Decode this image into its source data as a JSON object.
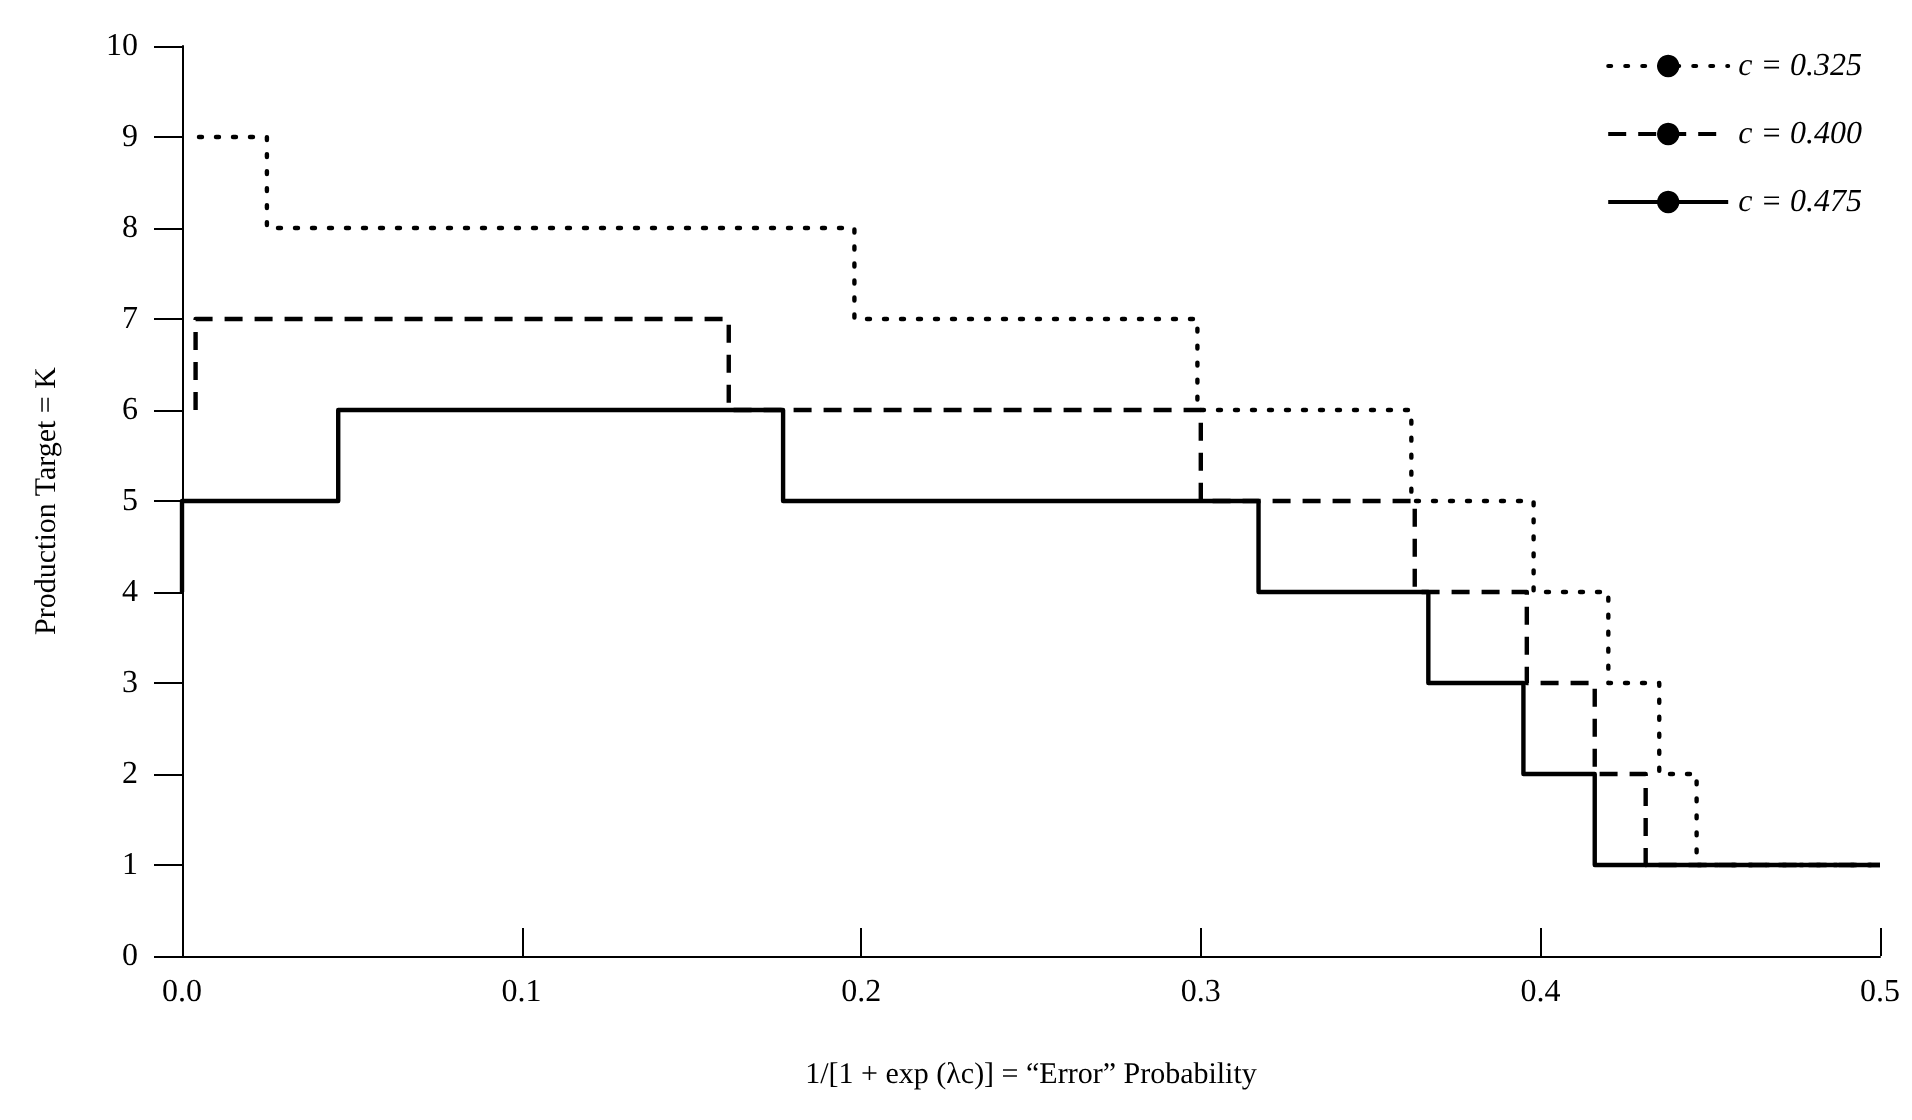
{
  "chart_data": {
    "type": "step",
    "xlabel": "1/[1 + exp (λc)] = “Error” Probability",
    "ylabel": "Production Target = K",
    "xlim": [
      0,
      0.5
    ],
    "xticks": [
      {
        "value": 0,
        "label": "0.0"
      },
      0.1,
      0.2,
      0.3,
      0.4,
      0.5
    ],
    "ylim": [
      0,
      10
    ],
    "yticks": [
      0,
      1,
      2,
      3,
      4,
      5,
      6,
      7,
      8,
      9,
      10
    ],
    "grid": false,
    "legend": "top right",
    "marker": "none",
    "series": [
      {
        "name": "c = 0.325",
        "color": "#000000",
        "line_style": "dotted",
        "x": [
          0.005,
          0.025,
          0.198,
          0.299,
          0.362,
          0.398,
          0.42,
          0.435,
          0.446,
          0.5
        ],
        "values": [
          9,
          8,
          7,
          6,
          5,
          4,
          3,
          2,
          1,
          1
        ]
      },
      {
        "name": "c = 0.400",
        "color": "#000000",
        "line_style": "dashed",
        "x": [
          0.004,
          0.004,
          0.161,
          0.3,
          0.363,
          0.396,
          0.416,
          0.431,
          0.5
        ],
        "values": [
          6,
          7,
          6,
          5,
          4,
          3,
          2,
          1,
          1
        ]
      },
      {
        "name": "c = 0.475",
        "color": "#000000",
        "line_style": "solid",
        "x": [
          0,
          0,
          0.046,
          0.177,
          0.317,
          0.367,
          0.395,
          0.416,
          0.5
        ],
        "values": [
          4,
          5,
          6,
          5,
          4,
          3,
          2,
          1,
          1
        ]
      }
    ]
  }
}
